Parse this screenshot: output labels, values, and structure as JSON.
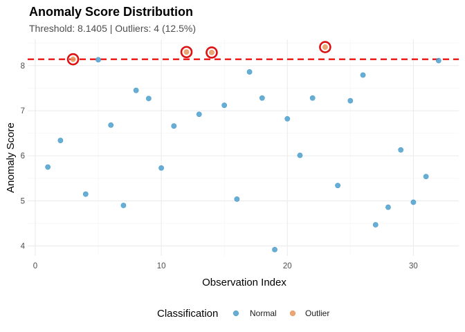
{
  "chart_data": {
    "type": "scatter",
    "title": "Anomaly Score Distribution",
    "subtitle": "Threshold: 8.1405 | Outliers: 4 (12.5%)",
    "xlabel": "Observation Index",
    "ylabel": "Anomaly Score",
    "xlim": [
      -0.6,
      33.6
    ],
    "ylim": [
      3.78,
      8.58
    ],
    "x_ticks": [
      0,
      10,
      20,
      30
    ],
    "y_ticks": [
      4,
      5,
      6,
      7,
      8
    ],
    "grid": true,
    "threshold": 8.1405,
    "legend": {
      "title": "Classification",
      "placement": "bottom",
      "entries": [
        {
          "name": "Normal",
          "color": "#4C9FCD"
        },
        {
          "name": "Outlier",
          "color": "#E8965A"
        }
      ]
    },
    "series": [
      {
        "name": "Normal",
        "color": "#4C9FCD",
        "x": [
          1,
          2,
          4,
          5,
          6,
          7,
          8,
          9,
          10,
          11,
          13,
          15,
          16,
          17,
          18,
          19,
          20,
          21,
          22,
          24,
          25,
          26,
          27,
          28,
          29,
          30,
          31,
          32
        ],
        "y": [
          5.75,
          6.34,
          5.15,
          8.13,
          6.68,
          4.9,
          7.45,
          7.27,
          5.73,
          6.66,
          6.92,
          7.12,
          5.04,
          7.86,
          7.28,
          3.92,
          6.82,
          6.01,
          7.28,
          5.34,
          7.22,
          7.79,
          4.47,
          4.86,
          6.13,
          4.97,
          5.54,
          8.11
        ]
      },
      {
        "name": "Outlier",
        "color": "#E8965A",
        "x": [
          3,
          12,
          14,
          23
        ],
        "y": [
          8.14,
          8.3,
          8.29,
          8.41
        ]
      }
    ],
    "threshold_color": "#EE1111",
    "outlier_ring_color": "#DD1111"
  }
}
